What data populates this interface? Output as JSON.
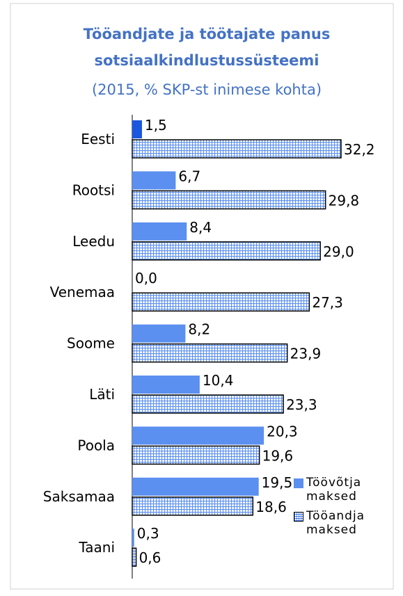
{
  "chart_data": {
    "type": "bar",
    "orientation": "horizontal",
    "title": "Tööandjate ja töötajate panus sotsiaalkindlustussüsteemi",
    "subtitle": "(2015, % SKP-st inimese kohta)",
    "categories": [
      "Eesti",
      "Rootsi",
      "Leedu",
      "Venemaa",
      "Soome",
      "Läti",
      "Poola",
      "Saksamaa",
      "Taani"
    ],
    "series": [
      {
        "name": "Töövõtja maksed",
        "color": "#5b8ff0",
        "point_colors": [
          "#1a56e0",
          null,
          null,
          null,
          null,
          null,
          null,
          null,
          null
        ],
        "values": [
          1.5,
          6.7,
          8.4,
          0.0,
          8.2,
          10.4,
          20.3,
          19.5,
          0.3
        ],
        "value_labels": [
          "1,5",
          "6,7",
          "8,4",
          "0,0",
          "8,2",
          "10,4",
          "20,3",
          "19,5",
          "0,3"
        ]
      },
      {
        "name": "Tööandja maksed",
        "color": "#5b8ff0",
        "pattern": "grid",
        "values": [
          32.2,
          29.8,
          29.0,
          27.3,
          23.9,
          23.3,
          19.6,
          18.6,
          0.6
        ],
        "value_labels": [
          "32,2",
          "29,8",
          "29,0",
          "27,3",
          "23,9",
          "23,3",
          "19,6",
          "18,6",
          "0,6"
        ]
      }
    ],
    "legend": "bottom-right"
  }
}
